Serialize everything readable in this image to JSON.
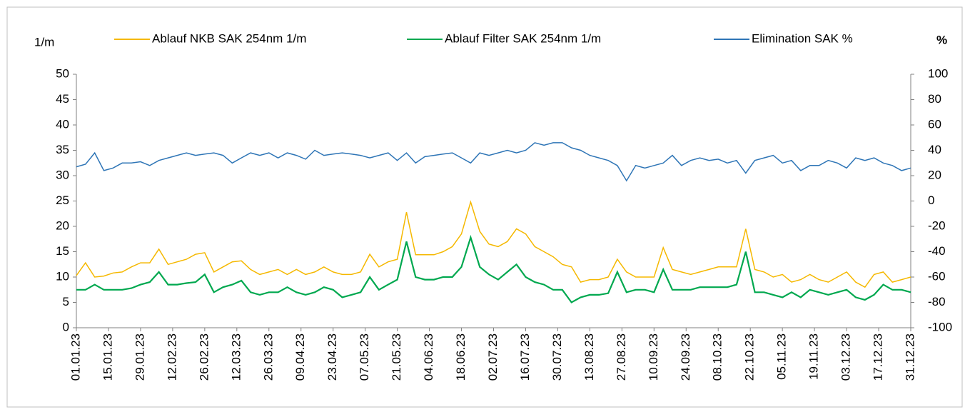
{
  "chart_data": {
    "type": "line",
    "y_label": "1/m",
    "y2_label": "%",
    "xlim": [
      0,
      364
    ],
    "xticks": [
      {
        "value": 0,
        "label": "01.01.23"
      },
      {
        "value": 14,
        "label": "15.01.23"
      },
      {
        "value": 28,
        "label": "29.01.23"
      },
      {
        "value": 42,
        "label": "12.02.23"
      },
      {
        "value": 56,
        "label": "26.02.23"
      },
      {
        "value": 70,
        "label": "12.03.23"
      },
      {
        "value": 84,
        "label": "26.03.23"
      },
      {
        "value": 98,
        "label": "09.04.23"
      },
      {
        "value": 112,
        "label": "23.04.23"
      },
      {
        "value": 126,
        "label": "07.05.23"
      },
      {
        "value": 140,
        "label": "21.05.23"
      },
      {
        "value": 154,
        "label": "04.06.23"
      },
      {
        "value": 168,
        "label": "18.06.23"
      },
      {
        "value": 182,
        "label": "02.07.23"
      },
      {
        "value": 196,
        "label": "16.07.23"
      },
      {
        "value": 210,
        "label": "30.07.23"
      },
      {
        "value": 224,
        "label": "13.08.23"
      },
      {
        "value": 238,
        "label": "27.08.23"
      },
      {
        "value": 252,
        "label": "10.09.23"
      },
      {
        "value": 266,
        "label": "24.09.23"
      },
      {
        "value": 280,
        "label": "08.10.23"
      },
      {
        "value": 294,
        "label": "22.10.23"
      },
      {
        "value": 308,
        "label": "05.11.23"
      },
      {
        "value": 322,
        "label": "19.11.23"
      },
      {
        "value": 336,
        "label": "03.12.23"
      },
      {
        "value": 350,
        "label": "17.12.23"
      },
      {
        "value": 364,
        "label": "31.12.23"
      }
    ],
    "ylim": [
      0,
      50
    ],
    "yticks": [
      0,
      5,
      10,
      15,
      20,
      25,
      30,
      35,
      40,
      45,
      50
    ],
    "y2lim": [
      -100,
      100
    ],
    "y2ticks": [
      -100,
      -80,
      -60,
      -40,
      -20,
      0,
      20,
      40,
      60,
      80,
      100
    ],
    "x": [
      0,
      4,
      8,
      12,
      16,
      20,
      24,
      28,
      32,
      36,
      40,
      44,
      48,
      52,
      56,
      60,
      64,
      68,
      72,
      76,
      80,
      84,
      88,
      92,
      96,
      100,
      104,
      108,
      112,
      116,
      120,
      124,
      128,
      132,
      136,
      140,
      144,
      148,
      152,
      156,
      160,
      164,
      168,
      172,
      176,
      180,
      184,
      188,
      192,
      196,
      200,
      204,
      208,
      212,
      216,
      220,
      224,
      228,
      232,
      236,
      240,
      244,
      248,
      252,
      256,
      260,
      264,
      268,
      272,
      276,
      280,
      284,
      288,
      292,
      296,
      300,
      304,
      308,
      312,
      316,
      320,
      324,
      328,
      332,
      336,
      340,
      344,
      348,
      352,
      356,
      360,
      364
    ],
    "series": [
      {
        "name": "Ablauf NKB SAK 254nm 1/m",
        "color": "#f5b800",
        "values": [
          10.3,
          12.8,
          10.0,
          10.2,
          10.8,
          11.0,
          12.0,
          12.8,
          12.8,
          15.5,
          12.5,
          13.0,
          13.5,
          14.5,
          14.8,
          11.0,
          12.0,
          13.0,
          13.2,
          11.5,
          10.5,
          11.0,
          11.5,
          10.5,
          11.5,
          10.5,
          11.0,
          12.0,
          11.0,
          10.5,
          10.5,
          11.0,
          14.5,
          12.0,
          13.0,
          13.5,
          22.8,
          14.4,
          14.4,
          14.4,
          15.0,
          16.0,
          18.5,
          24.8,
          19.0,
          16.5,
          16.0,
          17.0,
          19.5,
          18.5,
          16.0,
          15.0,
          14.0,
          12.5,
          12.0,
          9.0,
          9.5,
          9.5,
          10.0,
          13.5,
          11.0,
          10.0,
          10.0,
          10.0,
          15.8,
          11.5,
          11.0,
          10.5,
          11.0,
          11.5,
          12.0,
          12.0,
          12.0,
          19.5,
          11.5,
          11.0,
          10.0,
          10.5,
          9.0,
          9.5,
          10.5,
          9.5,
          9.0,
          10.0,
          11.0,
          9.0,
          8.0,
          10.5,
          11.0,
          9.0,
          9.5,
          10.0
        ]
      },
      {
        "name": "Ablauf Filter SAK 254nm 1/m",
        "color": "#00a84f",
        "values": [
          7.5,
          7.5,
          8.5,
          7.5,
          7.5,
          7.5,
          7.8,
          8.5,
          9.0,
          11.0,
          8.5,
          8.5,
          8.8,
          9.0,
          10.5,
          7.0,
          8.0,
          8.5,
          9.3,
          7.0,
          6.5,
          7.0,
          7.0,
          8.0,
          7.0,
          6.5,
          7.0,
          8.0,
          7.5,
          6.0,
          6.5,
          7.0,
          10.0,
          7.5,
          8.5,
          9.5,
          17.0,
          10.0,
          9.5,
          9.5,
          10.0,
          10.0,
          12.0,
          17.8,
          12.0,
          10.5,
          9.5,
          11.0,
          12.5,
          10.0,
          9.0,
          8.5,
          7.5,
          7.5,
          5.0,
          6.0,
          6.5,
          6.5,
          6.8,
          11.0,
          7.0,
          7.5,
          7.5,
          7.0,
          11.5,
          7.5,
          7.5,
          7.5,
          8.0,
          8.0,
          8.0,
          8.0,
          8.5,
          15.0,
          7.0,
          7.0,
          6.5,
          6.0,
          7.0,
          6.0,
          7.5,
          7.0,
          6.5,
          7.0,
          7.5,
          6.0,
          5.5,
          6.5,
          8.5,
          7.5,
          7.5,
          7.0
        ]
      },
      {
        "name": "Elimination SAK %",
        "color": "#2e75b6",
        "axis": "y2",
        "values": [
          27,
          29,
          38,
          24,
          26,
          30,
          30,
          31,
          28,
          32,
          34,
          36,
          38,
          36,
          37,
          38,
          36,
          30,
          34,
          38,
          36,
          38,
          34,
          38,
          36,
          33,
          40,
          36,
          37,
          38,
          37,
          36,
          34,
          36,
          38,
          32,
          38,
          30,
          35,
          36,
          37,
          38,
          34,
          30,
          38,
          36,
          38,
          40,
          38,
          40,
          46,
          44,
          46,
          46,
          42,
          40,
          36,
          34,
          32,
          28,
          16,
          28,
          26,
          28,
          30,
          36,
          28,
          32,
          34,
          32,
          33,
          30,
          32,
          22,
          32,
          34,
          36,
          30,
          32,
          24,
          28,
          28,
          32,
          30,
          26,
          34,
          32,
          34,
          30,
          28,
          24,
          26
        ]
      }
    ]
  }
}
